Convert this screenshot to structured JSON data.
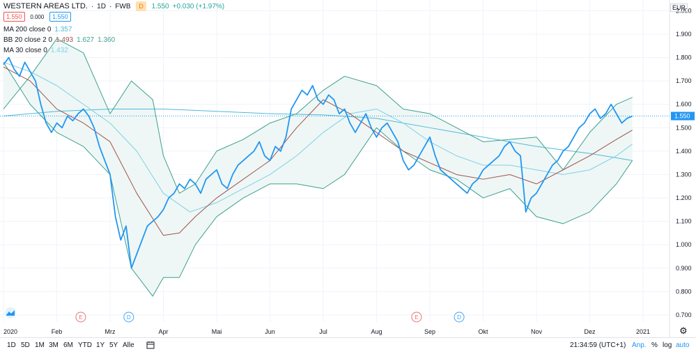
{
  "header": {
    "symbol": "WESTERN AREAS LTD.",
    "interval": "1D",
    "exchange": "FWB",
    "sep": "·",
    "dividend_badge": "D",
    "sell_price": "1.550",
    "spread": "0.000",
    "buy_price": "1.550",
    "last_price": "1.550",
    "change": "+0.030 (+1.97%)"
  },
  "indicators": [
    {
      "label": "MA 200 close 0",
      "values": [
        "1.357"
      ]
    },
    {
      "label": "BB 20 close 2 0",
      "values": [
        "1.493",
        "1.627",
        "1.360"
      ]
    },
    {
      "label": "MA 30 close 0",
      "values": [
        "1.432"
      ]
    }
  ],
  "currency": "EUR",
  "toolbar": {
    "ranges": [
      "1D",
      "5D",
      "1M",
      "3M",
      "6M",
      "YTD",
      "1Y",
      "5Y",
      "Alle"
    ],
    "time": "21:34:59 (UTC+1)",
    "adjust": "Anp.",
    "percent": "%",
    "log": "log",
    "auto": "auto"
  },
  "colors": {
    "price": "#2196f3",
    "ma200": "#4fb8d8",
    "bb_basis": "#a0524f",
    "bb_band": "#3fa08f",
    "bb_fill": "#eef7f5",
    "ma30": "#7fd0e8",
    "earnings": "#e57373",
    "dividend": "#42a5f5",
    "grid": "#f0f3fa"
  },
  "chart_data": {
    "type": "line",
    "xlabel": "",
    "ylabel": "",
    "x_ticks": [
      "2020",
      "Feb",
      "Mrz",
      "Apr",
      "Mai",
      "Jun",
      "Jul",
      "Aug",
      "Sep",
      "Okt",
      "Nov",
      "Dez",
      "2021"
    ],
    "y_ticks": [
      "0.700",
      "0.800",
      "0.900",
      "1.000",
      "1.100",
      "1.200",
      "1.300",
      "1.400",
      "1.500",
      "1.600",
      "1.700",
      "1.800",
      "1.900",
      "2.000"
    ],
    "ylim": [
      0.67,
      2.04
    ],
    "last_value_label": "1.550",
    "events": [
      {
        "type": "E",
        "month_pos": 1.45
      },
      {
        "type": "D",
        "month_pos": 2.35
      },
      {
        "type": "E",
        "month_pos": 7.75
      },
      {
        "type": "D",
        "month_pos": 8.55
      }
    ],
    "series": [
      {
        "key": "price",
        "x": [
          0,
          0.1,
          0.2,
          0.3,
          0.4,
          0.5,
          0.6,
          0.7,
          0.8,
          0.9,
          1.0,
          1.1,
          1.2,
          1.3,
          1.4,
          1.5,
          1.6,
          1.7,
          1.8,
          1.9,
          2.0,
          2.1,
          2.2,
          2.3,
          2.4,
          2.5,
          2.6,
          2.7,
          2.8,
          2.9,
          3.0,
          3.1,
          3.2,
          3.3,
          3.4,
          3.5,
          3.6,
          3.7,
          3.8,
          3.9,
          4.0,
          4.1,
          4.2,
          4.3,
          4.4,
          4.5,
          4.6,
          4.7,
          4.8,
          4.9,
          5.0,
          5.1,
          5.2,
          5.3,
          5.4,
          5.5,
          5.6,
          5.7,
          5.8,
          5.9,
          6.0,
          6.1,
          6.2,
          6.3,
          6.4,
          6.5,
          6.6,
          6.7,
          6.8,
          6.9,
          7.0,
          7.1,
          7.2,
          7.3,
          7.4,
          7.5,
          7.6,
          7.7,
          7.8,
          7.9,
          8.0,
          8.1,
          8.2,
          8.3,
          8.4,
          8.5,
          8.6,
          8.7,
          8.8,
          8.9,
          9.0,
          9.1,
          9.2,
          9.3,
          9.4,
          9.5,
          9.6,
          9.7,
          9.8,
          9.9,
          10.0,
          10.1,
          10.2,
          10.3,
          10.4,
          10.5,
          10.6,
          10.7,
          10.8,
          10.9,
          11.0,
          11.1,
          11.2,
          11.3,
          11.4,
          11.5,
          11.6,
          11.7,
          11.8
        ],
        "values": [
          1.77,
          1.8,
          1.75,
          1.72,
          1.78,
          1.74,
          1.7,
          1.6,
          1.52,
          1.48,
          1.52,
          1.5,
          1.55,
          1.53,
          1.56,
          1.58,
          1.55,
          1.5,
          1.42,
          1.36,
          1.3,
          1.12,
          1.02,
          1.08,
          0.9,
          0.96,
          1.02,
          1.08,
          1.1,
          1.12,
          1.15,
          1.2,
          1.22,
          1.26,
          1.24,
          1.28,
          1.26,
          1.22,
          1.28,
          1.3,
          1.32,
          1.26,
          1.24,
          1.3,
          1.34,
          1.36,
          1.38,
          1.4,
          1.44,
          1.38,
          1.36,
          1.42,
          1.4,
          1.46,
          1.58,
          1.62,
          1.66,
          1.64,
          1.68,
          1.62,
          1.6,
          1.64,
          1.62,
          1.56,
          1.58,
          1.52,
          1.48,
          1.52,
          1.56,
          1.5,
          1.46,
          1.5,
          1.52,
          1.48,
          1.44,
          1.36,
          1.32,
          1.34,
          1.38,
          1.42,
          1.46,
          1.38,
          1.32,
          1.3,
          1.28,
          1.26,
          1.24,
          1.22,
          1.26,
          1.28,
          1.32,
          1.34,
          1.36,
          1.38,
          1.42,
          1.44,
          1.4,
          1.38,
          1.14,
          1.2,
          1.22,
          1.26,
          1.3,
          1.34,
          1.36,
          1.4,
          1.42,
          1.46,
          1.5,
          1.52,
          1.56,
          1.58,
          1.54,
          1.56,
          1.6,
          1.56,
          1.52,
          1.54,
          1.55
        ]
      },
      {
        "key": "ma200",
        "x": [
          0,
          1,
          2,
          3,
          4,
          5,
          6,
          7,
          8,
          9,
          10,
          11,
          11.8
        ],
        "values": [
          1.55,
          1.57,
          1.58,
          1.58,
          1.57,
          1.56,
          1.555,
          1.54,
          1.5,
          1.46,
          1.42,
          1.39,
          1.36
        ]
      },
      {
        "key": "ma30",
        "x": [
          0,
          0.5,
          1.0,
          1.5,
          2.0,
          2.5,
          3.0,
          3.5,
          4.0,
          4.5,
          5.0,
          5.5,
          6.0,
          6.5,
          7.0,
          7.5,
          8.0,
          8.5,
          9.0,
          9.5,
          10.0,
          10.5,
          11.0,
          11.5,
          11.8
        ],
        "values": [
          1.78,
          1.74,
          1.68,
          1.6,
          1.52,
          1.4,
          1.22,
          1.14,
          1.18,
          1.24,
          1.3,
          1.38,
          1.48,
          1.56,
          1.58,
          1.52,
          1.44,
          1.38,
          1.34,
          1.34,
          1.32,
          1.3,
          1.32,
          1.38,
          1.43
        ]
      },
      {
        "key": "bb_basis",
        "x": [
          0,
          0.5,
          1.0,
          1.5,
          2.0,
          2.5,
          3.0,
          3.3,
          3.6,
          4.0,
          4.5,
          5.0,
          5.5,
          6.0,
          6.5,
          7.0,
          7.5,
          8.0,
          8.5,
          9.0,
          9.5,
          10.0,
          10.5,
          11.0,
          11.5,
          11.8
        ],
        "values": [
          1.76,
          1.7,
          1.58,
          1.52,
          1.44,
          1.22,
          1.04,
          1.05,
          1.12,
          1.2,
          1.28,
          1.36,
          1.5,
          1.62,
          1.56,
          1.48,
          1.4,
          1.35,
          1.3,
          1.28,
          1.3,
          1.26,
          1.32,
          1.38,
          1.45,
          1.49
        ]
      },
      {
        "key": "bb_upper",
        "x": [
          0,
          0.5,
          1.0,
          1.5,
          2.0,
          2.4,
          2.8,
          3.0,
          3.3,
          3.6,
          4.0,
          4.5,
          5.0,
          5.5,
          6.0,
          6.4,
          7.0,
          7.5,
          8.0,
          8.5,
          9.0,
          9.5,
          10.0,
          10.5,
          11.0,
          11.5,
          11.8
        ],
        "values": [
          1.58,
          1.72,
          1.88,
          1.82,
          1.56,
          1.7,
          1.62,
          1.38,
          1.22,
          1.26,
          1.4,
          1.45,
          1.52,
          1.56,
          1.66,
          1.72,
          1.68,
          1.58,
          1.56,
          1.5,
          1.44,
          1.45,
          1.46,
          1.32,
          1.48,
          1.6,
          1.63
        ]
      },
      {
        "key": "bb_lower",
        "x": [
          0,
          0.5,
          1.0,
          1.5,
          2.0,
          2.4,
          2.8,
          3.0,
          3.3,
          3.6,
          4.0,
          4.5,
          5.0,
          5.5,
          6.0,
          6.4,
          7.0,
          7.5,
          8.0,
          8.5,
          9.0,
          9.5,
          10.0,
          10.5,
          11.0,
          11.5,
          11.8
        ],
        "values": [
          1.78,
          1.6,
          1.48,
          1.42,
          1.3,
          0.9,
          0.78,
          0.86,
          0.86,
          1.0,
          1.12,
          1.2,
          1.26,
          1.26,
          1.24,
          1.3,
          1.5,
          1.4,
          1.32,
          1.28,
          1.2,
          1.24,
          1.12,
          1.09,
          1.14,
          1.26,
          1.36
        ]
      }
    ]
  }
}
